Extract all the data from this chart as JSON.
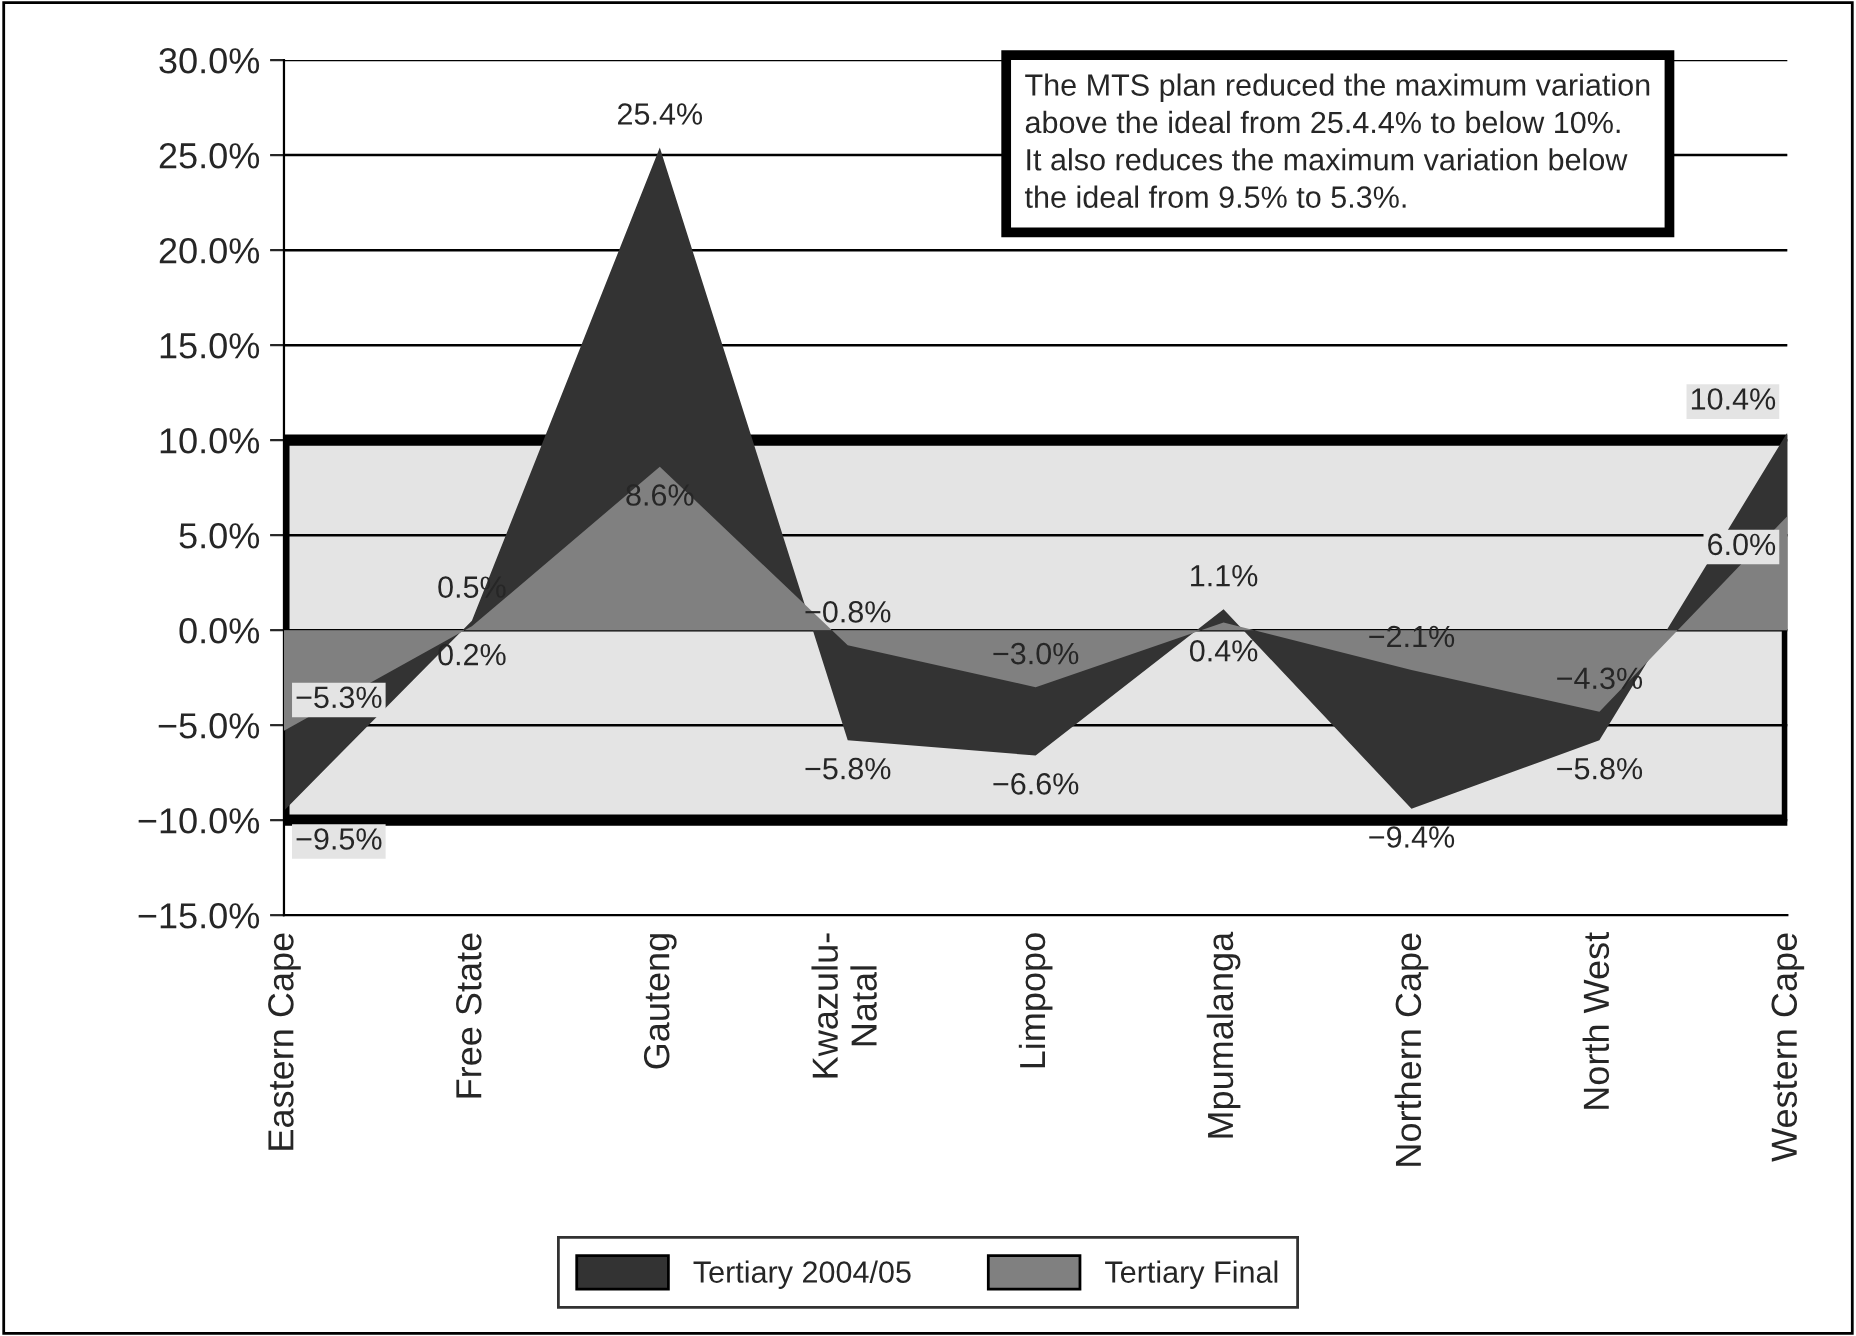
{
  "chart_data": {
    "type": "area",
    "categories": [
      "Eastern Cape",
      "Free State",
      "Gauteng",
      "Kwazulu-\nNatal",
      "Limpopo",
      "Mpumalanga",
      "Northern Cape",
      "North West",
      "Western Cape"
    ],
    "series": [
      {
        "name": "Tertiary 2004/05",
        "color": "#333333",
        "values": [
          -9.5,
          0.5,
          25.4,
          -5.8,
          -6.6,
          1.1,
          -9.4,
          -5.8,
          10.4
        ],
        "value_labels": [
          "−9.5%",
          "0.5%",
          "25.4%",
          "−5.8%",
          "−6.6%",
          "1.1%",
          "−9.4%",
          "−5.8%",
          "10.4%"
        ]
      },
      {
        "name": "Tertiary Final",
        "color": "#808080",
        "values": [
          -5.3,
          0.2,
          8.6,
          -0.8,
          -3.0,
          0.4,
          -2.1,
          -4.3,
          6.0
        ],
        "value_labels": [
          "−5.3%",
          "0.2%",
          "8.6%",
          "−0.8%",
          "−3.0%",
          "0.4%",
          "−2.1%",
          "−4.3%",
          "6.0%"
        ]
      }
    ],
    "ylim": [
      -15,
      30
    ],
    "yticks": [
      {
        "value": -15,
        "label": "−15.0%"
      },
      {
        "value": -10,
        "label": "−10.0%"
      },
      {
        "value": -5,
        "label": "−5.0%"
      },
      {
        "value": 0,
        "label": "0.0%"
      },
      {
        "value": 5,
        "label": "5.0%"
      },
      {
        "value": 10,
        "label": "10.0%"
      },
      {
        "value": 15,
        "label": "15.0%"
      },
      {
        "value": 20,
        "label": "20.0%"
      },
      {
        "value": 25,
        "label": "25.0%"
      },
      {
        "value": 30,
        "label": "30.0%"
      }
    ],
    "bands": [
      {
        "axis": "y",
        "from": -10,
        "to": 10,
        "color": "#e4e4e4"
      }
    ],
    "grid": "y",
    "legend": "bottom",
    "annotations": [
      "The MTS plan reduced the maximum variation\nabove the ideal from 25.4.4% to below 10%.\nIt also reduces the maximum variation below\nthe ideal from 9.5% to 5.3%."
    ]
  }
}
